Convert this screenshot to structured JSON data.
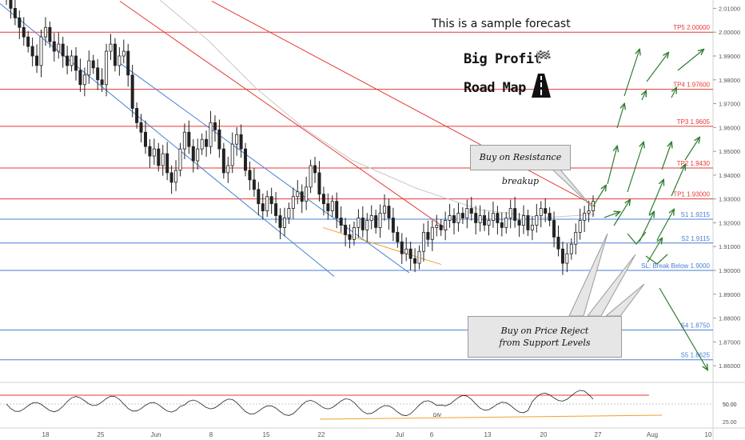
{
  "chart_data": {
    "type": "candlestick",
    "title": "This is a sample forecast",
    "annotations": {
      "big_profit": "Big Profit",
      "road_map": "Road Map",
      "buy_breakup": "Buy on Resistance breakup",
      "buy_support_line1": "Buy on Price Reject",
      "buy_support_line2": "from Support Levels",
      "rsi_mark": "DIV"
    },
    "y_axis": {
      "range": [
        1.853,
        2.0135
      ],
      "ticks": [
        1.86,
        1.87,
        1.88,
        1.89,
        1.9,
        1.91,
        1.92,
        1.93,
        1.94,
        1.95,
        1.96,
        1.97,
        1.98,
        1.99,
        2.0,
        2.01
      ],
      "tick_labels": [
        "1.86000",
        "1.87000",
        "1.88000",
        "1.89000",
        "1.90000",
        "1.91000",
        "1.92000",
        "1.93000",
        "1.94000",
        "1.95000",
        "1.96000",
        "1.97000",
        "1.98000",
        "1.99000",
        "2.00000",
        "2.01000"
      ]
    },
    "x_axis": {
      "tick_labels": [
        "18",
        "25",
        "Jun",
        "8",
        "15",
        "22",
        "Jul",
        "6",
        "13",
        "20",
        "27",
        "Aug",
        "10"
      ]
    },
    "levels": [
      {
        "label": "TP5 2.00000",
        "value": 2.0,
        "kind": "resistance"
      },
      {
        "label": "TP4 1.97600",
        "value": 1.976,
        "kind": "resistance"
      },
      {
        "label": "TP3 1.9605",
        "value": 1.9605,
        "kind": "resistance"
      },
      {
        "label": "TP2 1.9430",
        "value": 1.943,
        "kind": "resistance"
      },
      {
        "label": "TP1 1.93000",
        "value": 1.93,
        "kind": "resistance"
      },
      {
        "label": "S1 1.9215",
        "value": 1.9215,
        "kind": "support"
      },
      {
        "label": "S2 1.9115",
        "value": 1.9115,
        "kind": "support"
      },
      {
        "label": "SL: Break Below 1.9000",
        "value": 1.9,
        "kind": "support"
      },
      {
        "label": "S4 1.8750",
        "value": 1.875,
        "kind": "support"
      },
      {
        "label": "S5 1.8625",
        "value": 1.8625,
        "kind": "support"
      }
    ],
    "series": [
      {
        "values": [
          2.014,
          2.01,
          2.006,
          2.002,
          1.998,
          1.994,
          1.99,
          1.986,
          1.998,
          2.002,
          1.996,
          1.992,
          1.995,
          1.99,
          1.986,
          1.99,
          1.984,
          1.978,
          1.982,
          1.988,
          1.985,
          1.98,
          1.978,
          1.992,
          1.995,
          1.986,
          1.99,
          1.992,
          1.982,
          1.968,
          1.962,
          1.958,
          1.952,
          1.948,
          1.951,
          1.944,
          1.949,
          1.941,
          1.937,
          1.942,
          1.951,
          1.958,
          1.952,
          1.946,
          1.951,
          1.955,
          1.952,
          1.962,
          1.959,
          1.951,
          1.941,
          1.944,
          1.953,
          1.957,
          1.951,
          1.942,
          1.938,
          1.934,
          1.928,
          1.925,
          1.931,
          1.928,
          1.923,
          1.918,
          1.922,
          1.926,
          1.931,
          1.933,
          1.929,
          1.935,
          1.944,
          1.941,
          1.932,
          1.928,
          1.925,
          1.929,
          1.922,
          1.919,
          1.915,
          1.913,
          1.918,
          1.922,
          1.917,
          1.921,
          1.923,
          1.918,
          1.924,
          1.927,
          1.922,
          1.916,
          1.912,
          1.907,
          1.909,
          1.905,
          1.903,
          1.908,
          1.916,
          1.913,
          1.918,
          1.919,
          1.917,
          1.921,
          1.923,
          1.92,
          1.924,
          1.922,
          1.926,
          1.924,
          1.92,
          1.923,
          1.919,
          1.921,
          1.924,
          1.92,
          1.918,
          1.922,
          1.926,
          1.921,
          1.919,
          1.923,
          1.917,
          1.919,
          1.923,
          1.926,
          1.924,
          1.921,
          1.914,
          1.909,
          1.903,
          1.907,
          1.911,
          1.916,
          1.921,
          1.924,
          1.925,
          1.929
        ]
      }
    ],
    "projection_arrows": "green up-trend arrows toward TP levels; one down arrow toward S5",
    "colors": {
      "resistance": "#e53935",
      "support": "#4a7fd4",
      "arrow": "#2e7d32",
      "candle": "#222222",
      "trend_orange": "#f0a030",
      "ma": "#c8c8c8"
    },
    "rsi": {
      "upper_label": "50.00",
      "lower_label": "25.00"
    },
    "grid": false
  }
}
